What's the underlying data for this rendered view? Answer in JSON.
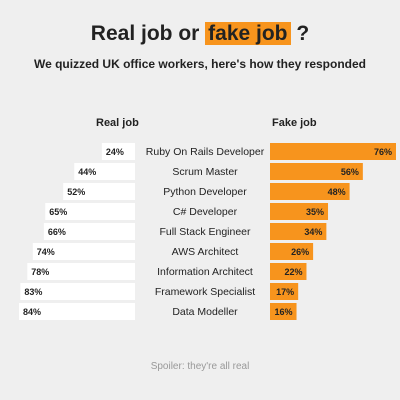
{
  "header": {
    "title_pre": "Real job or ",
    "title_highlight": "fake job",
    "title_post": " ?",
    "subtitle": "We quizzed UK office workers, here's how they responded"
  },
  "colors": {
    "real_bar": "#ffffff",
    "fake_bar": "#f7941d",
    "background": "#efefef"
  },
  "footer": {
    "spoiler": "Spoiler: they're all real"
  },
  "chart_data": {
    "type": "bar",
    "categories": [
      "Ruby On Rails Developer",
      "Scrum Master",
      "Python Developer",
      "C# Developer",
      "Full Stack Engineer",
      "AWS Architect",
      "Information Architect",
      "Framework Specialist",
      "Data Modeller"
    ],
    "series": [
      {
        "name": "Real job",
        "values": [
          24,
          44,
          52,
          65,
          66,
          74,
          78,
          83,
          84
        ]
      },
      {
        "name": "Fake job",
        "values": [
          76,
          56,
          48,
          35,
          34,
          26,
          22,
          17,
          16
        ]
      }
    ],
    "unit": "%",
    "legend": "none"
  }
}
